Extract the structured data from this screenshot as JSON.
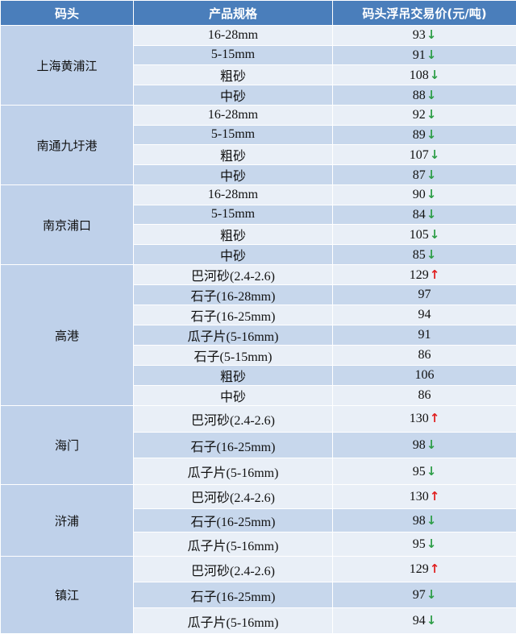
{
  "table": {
    "header": [
      "码头",
      "产品规格",
      "码头浮吊交易价(元/吨)"
    ],
    "groups": [
      {
        "port": "上海黄浦江",
        "rows": [
          {
            "spec": "16-28mm",
            "price": 93,
            "trend": "↓",
            "trend_color": "#2e9e48"
          },
          {
            "spec": "5-15mm",
            "price": 91,
            "trend": "↓",
            "trend_color": "#2e9e48"
          },
          {
            "spec": "粗砂",
            "price": 108,
            "trend": "↓",
            "trend_color": "#2e9e48"
          },
          {
            "spec": "中砂",
            "price": 88,
            "trend": "↓",
            "trend_color": "#2e9e48"
          }
        ]
      },
      {
        "port": "南通九圩港",
        "rows": [
          {
            "spec": "16-28mm",
            "price": 92,
            "trend": "↓",
            "trend_color": "#2e9e48"
          },
          {
            "spec": "5-15mm",
            "price": 89,
            "trend": "↓",
            "trend_color": "#2e9e48"
          },
          {
            "spec": "粗砂",
            "price": 107,
            "trend": "↓",
            "trend_color": "#2e9e48"
          },
          {
            "spec": "中砂",
            "price": 87,
            "trend": "↓",
            "trend_color": "#2e9e48"
          }
        ]
      },
      {
        "port": "南京浦口",
        "rows": [
          {
            "spec": "16-28mm",
            "price": 90,
            "trend": "↓",
            "trend_color": "#2e9e48"
          },
          {
            "spec": "5-15mm",
            "price": 84,
            "trend": "↓",
            "trend_color": "#2e9e48"
          },
          {
            "spec": "粗砂",
            "price": 105,
            "trend": "↓",
            "trend_color": "#2e9e48"
          },
          {
            "spec": "中砂",
            "price": 85,
            "trend": "↓",
            "trend_color": "#2e9e48"
          }
        ]
      },
      {
        "port": "高港",
        "rows": [
          {
            "spec": "巴河砂(2.4-2.6)",
            "price": 129,
            "trend": "↑",
            "trend_color": "#e02020"
          },
          {
            "spec": "石子(16-28mm)",
            "price": 97
          },
          {
            "spec": "石子(16-25mm)",
            "price": 94
          },
          {
            "spec": "瓜子片(5-16mm)",
            "price": 91
          },
          {
            "spec": "石子(5-15mm)",
            "price": 86
          },
          {
            "spec": "粗砂",
            "price": 106
          },
          {
            "spec": "中砂",
            "price": 86
          }
        ]
      },
      {
        "port": "海门",
        "rows": [
          {
            "spec": "巴河砂(2.4-2.6)",
            "price": 130,
            "trend": "↑",
            "trend_color": "#e02020"
          },
          {
            "spec": "石子(16-25mm)",
            "price": 98,
            "trend": "↓",
            "trend_color": "#2e9e48"
          },
          {
            "spec": "瓜子片(5-16mm)",
            "price": 95,
            "trend": "↓",
            "trend_color": "#2e9e48"
          }
        ]
      },
      {
        "port": "浒浦",
        "rows": [
          {
            "spec": "巴河砂(2.4-2.6)",
            "price": 130,
            "trend": "↑",
            "trend_color": "#e02020"
          },
          {
            "spec": "石子(16-25mm)",
            "price": 98,
            "trend": "↓",
            "trend_color": "#2e9e48"
          },
          {
            "spec": "瓜子片(5-16mm)",
            "price": 95,
            "trend": "↓",
            "trend_color": "#2e9e48"
          }
        ]
      },
      {
        "port": "镇江",
        "rows": [
          {
            "spec": "巴河砂(2.4-2.6)",
            "price": 129,
            "trend": "↑",
            "trend_color": "#e02020"
          },
          {
            "spec": "石子(16-25mm)",
            "price": 97,
            "trend": "↓",
            "trend_color": "#2e9e48"
          },
          {
            "spec": "瓜子片(5-16mm)",
            "price": 94,
            "trend": "↓",
            "trend_color": "#2e9e48"
          }
        ]
      }
    ]
  }
}
